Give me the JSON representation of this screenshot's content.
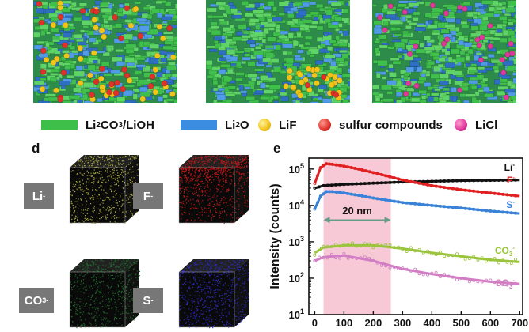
{
  "legend": [
    {
      "label_main": "Li",
      "sub1": "2",
      "mid": "CO",
      "sub2": "3",
      "rest": "/LiOH",
      "color": "#3dbf4a",
      "shape": "rect"
    },
    {
      "label_main": "Li",
      "sub1": "2",
      "mid": "O",
      "sub2": "",
      "rest": "",
      "color": "#3a8de0",
      "shape": "rect"
    },
    {
      "label_main": "LiF",
      "sub1": "",
      "mid": "",
      "sub2": "",
      "rest": "",
      "color": "#f2c318",
      "shape": "dot"
    },
    {
      "label_main": "sulfur compounds",
      "sub1": "",
      "mid": "",
      "sub2": "",
      "rest": "",
      "color": "#e0302a",
      "shape": "dot"
    },
    {
      "label_main": "LiCl",
      "sub1": "",
      "mid": "",
      "sub2": "",
      "rest": "",
      "color": "#e0389a",
      "shape": "dot"
    }
  ],
  "panels": {
    "d": "d",
    "e": "e"
  },
  "cubes": [
    {
      "label": "Li",
      "sup": "-",
      "sub": "",
      "color": "#a8a640"
    },
    {
      "label": "F",
      "sup": "-",
      "sub": "",
      "color": "#c01818"
    },
    {
      "label": "CO",
      "sup": "-",
      "sub": "3",
      "color": "#1f6a2a"
    },
    {
      "label": "S",
      "sup": "-",
      "sub": "",
      "color": "#2a2ab8"
    }
  ],
  "chart_data": {
    "type": "line",
    "ylabel": "Intensity (counts)",
    "yscale": "log",
    "ylim": [
      10,
      200000
    ],
    "xlim": [
      -20,
      710
    ],
    "x_ticks": [
      "0",
      "100",
      "200",
      "300",
      "400",
      "500",
      "600",
      "700"
    ],
    "y_ticks": [
      "10",
      "10",
      "10",
      "10",
      "10"
    ],
    "y_tick_exp": [
      "1",
      "2",
      "3",
      "4",
      "5"
    ],
    "shaded_region": [
      30,
      260
    ],
    "annotation": "20 nm",
    "series": [
      {
        "name": "Li",
        "sup": "-",
        "sub": "",
        "color": "#111111",
        "x": [
          0,
          30,
          100,
          200,
          300,
          400,
          500,
          600,
          700
        ],
        "y": [
          30000,
          35000,
          38000,
          41000,
          44000,
          46000,
          48000,
          49000,
          50000
        ]
      },
      {
        "name": "F",
        "sup": "-",
        "sub": "",
        "color": "#e02020",
        "x": [
          0,
          20,
          40,
          60,
          100,
          150,
          200,
          300,
          400,
          500,
          600,
          700
        ],
        "y": [
          40000,
          110000,
          140000,
          135000,
          120000,
          100000,
          80000,
          50000,
          35000,
          27000,
          22000,
          18000
        ]
      },
      {
        "name": "S",
        "sup": "-",
        "sub": "",
        "color": "#3a82d8",
        "x": [
          0,
          20,
          40,
          60,
          100,
          150,
          200,
          300,
          400,
          500,
          600,
          700
        ],
        "y": [
          8000,
          18000,
          24000,
          24000,
          22000,
          19000,
          16000,
          12000,
          10000,
          8500,
          7000,
          6000
        ]
      },
      {
        "name": "CO",
        "sup": "-",
        "sub": "3",
        "color": "#9ac43c",
        "x": [
          0,
          30,
          100,
          200,
          300,
          400,
          500,
          600,
          700
        ],
        "y": [
          500,
          700,
          800,
          800,
          650,
          500,
          400,
          320,
          280
        ]
      },
      {
        "name": "SO",
        "sup": "-",
        "sub": "3",
        "color": "#d27ec4",
        "x": [
          0,
          30,
          100,
          200,
          300,
          400,
          500,
          600,
          700
        ],
        "y": [
          300,
          380,
          420,
          300,
          180,
          130,
          100,
          80,
          70
        ]
      }
    ]
  }
}
